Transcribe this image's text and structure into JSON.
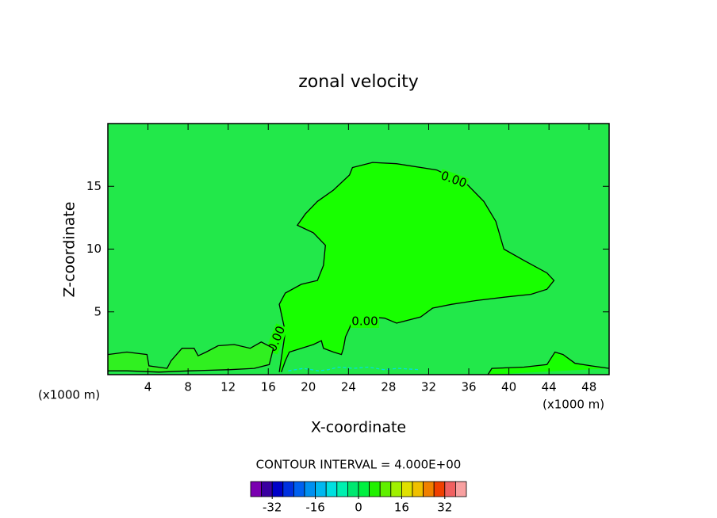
{
  "chart_data": {
    "type": "contour",
    "title": "zonal velocity",
    "xlabel": "X-coordinate",
    "ylabel": "Z-coordinate",
    "x_unit": "(x1000 m)",
    "y_unit": "(x1000 m)",
    "xlim": [
      0,
      50
    ],
    "ylim": [
      0,
      20
    ],
    "xticks": [
      4,
      8,
      12,
      16,
      20,
      24,
      28,
      32,
      36,
      40,
      44,
      48
    ],
    "yticks": [
      5,
      10,
      15
    ],
    "background_color": "#22e84a",
    "contours": [
      {
        "labels": [
          "0.00",
          "0.00",
          "0.00"
        ],
        "fill": "#18ff00",
        "stroke": "#000000",
        "dashed": false,
        "x": [
          17.1,
          17.4,
          17.7,
          17.1,
          17.7,
          19.3,
          20.9,
          21.5,
          21.7,
          20.5,
          18.9,
          19.7,
          20.9,
          22.5,
          24.1,
          24.4,
          26.4,
          28.8,
          32.8,
          35.9,
          37.5,
          38.7,
          39.5,
          41.5,
          43.8,
          44.5,
          43.8,
          42.2,
          39.9,
          36.7,
          34.3,
          32.4,
          31.2,
          28.8,
          27.6,
          26.0,
          24.4,
          24.1,
          23.7,
          23.5,
          23.3,
          22.5,
          21.5,
          21.3,
          20.5,
          19.3,
          18.1,
          17.7,
          17.3
        ],
        "y": [
          0.2,
          1.8,
          3.4,
          5.6,
          6.5,
          7.2,
          7.5,
          8.7,
          10.3,
          11.3,
          11.9,
          12.8,
          13.8,
          14.7,
          15.9,
          16.5,
          16.9,
          16.8,
          16.3,
          15.1,
          13.8,
          12.2,
          10.0,
          9.1,
          8.1,
          7.5,
          6.8,
          6.4,
          6.2,
          5.9,
          5.6,
          5.3,
          4.6,
          4.1,
          4.5,
          4.6,
          4.3,
          3.7,
          3.0,
          2.1,
          1.6,
          1.8,
          2.1,
          2.7,
          2.4,
          2.1,
          1.8,
          1.1,
          0.2
        ]
      },
      {
        "fill": "#30f020",
        "stroke": "#000000",
        "dashed": false,
        "x": [
          0,
          1.9,
          3.9,
          4.1,
          5.9,
          6.3,
          7.4,
          8.6,
          9.0,
          9.8,
          11.0,
          12.6,
          14.2,
          15.3,
          16.5,
          16.1,
          14.6,
          12.2,
          8.2,
          5.1,
          1.9,
          0
        ],
        "y": [
          1.6,
          1.8,
          1.6,
          0.7,
          0.5,
          1.1,
          2.1,
          2.1,
          1.5,
          1.8,
          2.3,
          2.4,
          2.1,
          2.6,
          2.1,
          0.8,
          0.5,
          0.4,
          0.3,
          0.2,
          0.3,
          0.3
        ]
      },
      {
        "fill": "#18ff00",
        "stroke": "#000000",
        "dashed": false,
        "x": [
          37.9,
          38.3,
          41.5,
          43.8,
          44.6,
          45.4,
          46.6,
          48.2,
          50
        ],
        "y": [
          0,
          0.5,
          0.6,
          0.8,
          1.8,
          1.6,
          0.9,
          0.7,
          0.5
        ]
      },
      {
        "fill": "none",
        "stroke": "#00e0e0",
        "dashed": true,
        "x": [
          18.0,
          19.5,
          21.0,
          22.0,
          23.0,
          24.5,
          26.0,
          27.5,
          29.0,
          31.0
        ],
        "y": [
          0.3,
          0.5,
          0.3,
          0.4,
          0.6,
          0.5,
          0.6,
          0.4,
          0.5,
          0.4
        ]
      }
    ],
    "colorbar_title": "CONTOUR INTERVAL = 4.000E+00",
    "colorbar_lim": [
      -40,
      40
    ],
    "colorbar_ticks": [
      -32,
      -16,
      0,
      16,
      32
    ],
    "colorbar_colors": [
      "#7a00b0",
      "#3a00a0",
      "#0000c8",
      "#0030e0",
      "#0060f0",
      "#0090f0",
      "#00b8f0",
      "#00e0e0",
      "#00f0b0",
      "#00e870",
      "#00f040",
      "#20f000",
      "#60f000",
      "#a0f000",
      "#e0e000",
      "#f0c000",
      "#f08000",
      "#f04000",
      "#f06060",
      "#f8a0a0"
    ]
  }
}
